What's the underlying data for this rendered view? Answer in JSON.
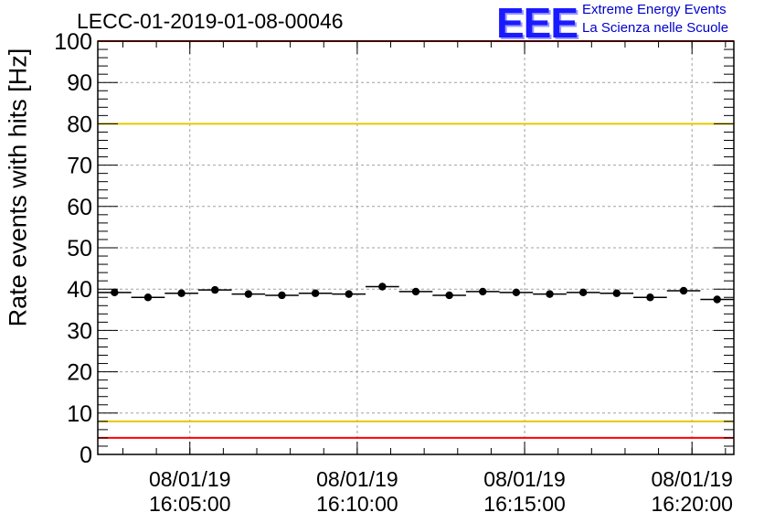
{
  "header": {
    "title": "LECC-01-2019-01-08-00046",
    "logo_mark": "EEE",
    "logo_line1": "Extreme Energy Events",
    "logo_line2": "La Scienza nelle Scuole"
  },
  "colors": {
    "background": "#ffffff",
    "markers": "#000000",
    "grid": "#a0a0a0",
    "threshold_red": "#ff0000",
    "threshold_yellow": "#e6c800",
    "logo_blue": "#1a1aff"
  },
  "chart_data": {
    "type": "scatter",
    "title": "LECC-01-2019-01-08-00046",
    "ylabel": "Rate events with hits [Hz]",
    "xlabel": "",
    "ylim": [
      0,
      100
    ],
    "xlim": [
      "08/01/19 16:02:15",
      "08/01/19 16:21:15"
    ],
    "grid": true,
    "yticks": [
      "0",
      "10",
      "20",
      "30",
      "40",
      "50",
      "60",
      "70",
      "80",
      "90",
      "100"
    ],
    "xticks": [
      {
        "time": "16:05:00",
        "line1": "08/01/19",
        "line2": "16:05:00"
      },
      {
        "time": "16:10:00",
        "line1": "08/01/19",
        "line2": "16:10:00"
      },
      {
        "time": "16:15:00",
        "line1": "08/01/19",
        "line2": "16:15:00"
      },
      {
        "time": "16:20:00",
        "line1": "08/01/19",
        "line2": "16:20:00"
      }
    ],
    "bin_width_seconds": 60,
    "reference_lines": [
      {
        "y": 80,
        "color": "#e6c800"
      },
      {
        "y": 8,
        "color": "#e6c800"
      },
      {
        "y": 4,
        "color": "#ff0000"
      },
      {
        "y": 100,
        "color": "#ff0000"
      }
    ],
    "series": [
      {
        "x": [
          "16:02:45",
          "16:03:45",
          "16:04:45",
          "16:05:45",
          "16:06:45",
          "16:07:45",
          "16:08:45",
          "16:09:45",
          "16:10:45",
          "16:11:45",
          "16:12:45",
          "16:13:45",
          "16:14:45",
          "16:15:45",
          "16:16:45",
          "16:17:45",
          "16:18:45",
          "16:19:45",
          "16:20:45"
        ],
        "values": [
          39.2,
          38.0,
          39.0,
          39.8,
          38.8,
          38.5,
          39.0,
          38.8,
          40.6,
          39.4,
          38.5,
          39.4,
          39.2,
          38.8,
          39.2,
          39.0,
          38.0,
          39.6,
          37.5
        ]
      }
    ]
  }
}
